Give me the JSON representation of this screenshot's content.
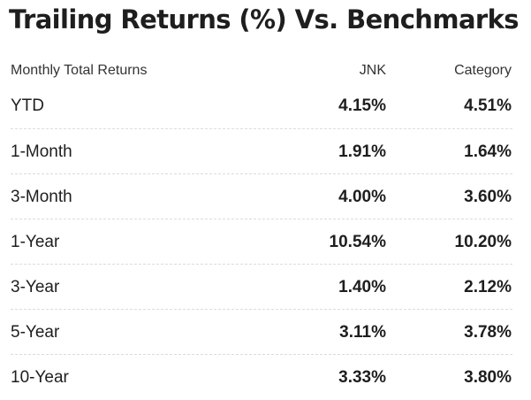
{
  "title": "Trailing Returns (%) Vs. Benchmarks",
  "table": {
    "headers": {
      "label": "Monthly Total Returns",
      "fund": "JNK",
      "category": "Category"
    },
    "rows": [
      {
        "label": "YTD",
        "fund": "4.15%",
        "category": "4.51%"
      },
      {
        "label": "1-Month",
        "fund": "1.91%",
        "category": "1.64%"
      },
      {
        "label": "3-Month",
        "fund": "4.00%",
        "category": "3.60%"
      },
      {
        "label": "1-Year",
        "fund": "10.54%",
        "category": "10.20%"
      },
      {
        "label": "3-Year",
        "fund": "1.40%",
        "category": "2.12%"
      },
      {
        "label": "5-Year",
        "fund": "3.11%",
        "category": "3.78%"
      },
      {
        "label": "10-Year",
        "fund": "3.33%",
        "category": "3.80%"
      }
    ]
  }
}
